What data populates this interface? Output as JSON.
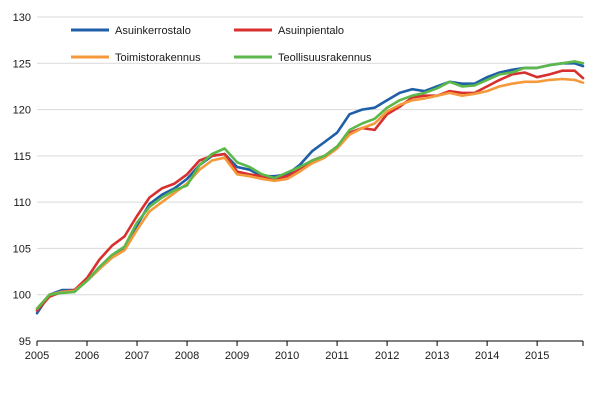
{
  "chart_data": {
    "type": "line",
    "title": "",
    "xlabel": "",
    "ylabel": "",
    "xlim": [
      2005.0,
      2015.917
    ],
    "ylim": [
      95,
      130
    ],
    "y_ticks": [
      95,
      100,
      105,
      110,
      115,
      120,
      125,
      130
    ],
    "x_ticks": [
      "2005",
      "2006",
      "2007",
      "2008",
      "2009",
      "2010",
      "2011",
      "2012",
      "2013",
      "2014",
      "2015"
    ],
    "grid": "horizontal",
    "legend_position": "top-left",
    "series": [
      {
        "name": "Asuinkerrostalo",
        "color": "#1f5fa8",
        "points": [
          [
            2005.0,
            98.0
          ],
          [
            2005.25,
            100.0
          ],
          [
            2005.5,
            100.5
          ],
          [
            2005.75,
            100.5
          ],
          [
            2006.0,
            101.5
          ],
          [
            2006.25,
            102.8
          ],
          [
            2006.5,
            104.0
          ],
          [
            2006.75,
            105.0
          ],
          [
            2007.0,
            107.5
          ],
          [
            2007.25,
            109.8
          ],
          [
            2007.5,
            110.8
          ],
          [
            2007.75,
            111.5
          ],
          [
            2008.0,
            112.5
          ],
          [
            2008.25,
            114.0
          ],
          [
            2008.5,
            115.0
          ],
          [
            2008.75,
            115.2
          ],
          [
            2009.0,
            113.8
          ],
          [
            2009.25,
            113.5
          ],
          [
            2009.5,
            112.8
          ],
          [
            2009.75,
            112.8
          ],
          [
            2010.0,
            113.0
          ],
          [
            2010.25,
            114.0
          ],
          [
            2010.5,
            115.5
          ],
          [
            2010.75,
            116.5
          ],
          [
            2011.0,
            117.5
          ],
          [
            2011.25,
            119.5
          ],
          [
            2011.5,
            120.0
          ],
          [
            2011.75,
            120.2
          ],
          [
            2012.0,
            121.0
          ],
          [
            2012.25,
            121.8
          ],
          [
            2012.5,
            122.2
          ],
          [
            2012.75,
            122.0
          ],
          [
            2013.0,
            122.5
          ],
          [
            2013.25,
            123.0
          ],
          [
            2013.5,
            122.8
          ],
          [
            2013.75,
            122.8
          ],
          [
            2014.0,
            123.5
          ],
          [
            2014.25,
            124.0
          ],
          [
            2014.5,
            124.3
          ],
          [
            2014.75,
            124.5
          ],
          [
            2015.0,
            124.5
          ],
          [
            2015.25,
            124.8
          ],
          [
            2015.5,
            125.0
          ],
          [
            2015.75,
            125.0
          ],
          [
            2015.917,
            124.7
          ]
        ]
      },
      {
        "name": "Asuinpientalo",
        "color": "#d7302f",
        "points": [
          [
            2005.0,
            98.3
          ],
          [
            2005.25,
            99.8
          ],
          [
            2005.5,
            100.3
          ],
          [
            2005.75,
            100.5
          ],
          [
            2006.0,
            101.8
          ],
          [
            2006.25,
            103.8
          ],
          [
            2006.5,
            105.3
          ],
          [
            2006.75,
            106.3
          ],
          [
            2007.0,
            108.5
          ],
          [
            2007.25,
            110.5
          ],
          [
            2007.5,
            111.5
          ],
          [
            2007.75,
            112.0
          ],
          [
            2008.0,
            113.0
          ],
          [
            2008.25,
            114.5
          ],
          [
            2008.5,
            115.0
          ],
          [
            2008.75,
            115.2
          ],
          [
            2009.0,
            113.3
          ],
          [
            2009.25,
            113.0
          ],
          [
            2009.5,
            112.8
          ],
          [
            2009.75,
            112.5
          ],
          [
            2010.0,
            112.8
          ],
          [
            2010.25,
            113.5
          ],
          [
            2010.5,
            114.5
          ],
          [
            2010.75,
            115.0
          ],
          [
            2011.0,
            116.0
          ],
          [
            2011.25,
            117.5
          ],
          [
            2011.5,
            118.0
          ],
          [
            2011.75,
            117.8
          ],
          [
            2012.0,
            119.5
          ],
          [
            2012.25,
            120.3
          ],
          [
            2012.5,
            121.3
          ],
          [
            2012.75,
            121.5
          ],
          [
            2013.0,
            121.5
          ],
          [
            2013.25,
            122.0
          ],
          [
            2013.5,
            121.8
          ],
          [
            2013.75,
            121.8
          ],
          [
            2014.0,
            122.5
          ],
          [
            2014.25,
            123.2
          ],
          [
            2014.5,
            123.8
          ],
          [
            2014.75,
            124.0
          ],
          [
            2015.0,
            123.5
          ],
          [
            2015.25,
            123.8
          ],
          [
            2015.5,
            124.2
          ],
          [
            2015.75,
            124.2
          ],
          [
            2015.917,
            123.4
          ]
        ]
      },
      {
        "name": "Toimistorakennus",
        "color": "#f59a3c",
        "points": [
          [
            2005.0,
            98.5
          ],
          [
            2005.25,
            100.0
          ],
          [
            2005.5,
            100.3
          ],
          [
            2005.75,
            100.4
          ],
          [
            2006.0,
            101.5
          ],
          [
            2006.25,
            102.8
          ],
          [
            2006.5,
            104.0
          ],
          [
            2006.75,
            104.8
          ],
          [
            2007.0,
            107.0
          ],
          [
            2007.25,
            109.0
          ],
          [
            2007.5,
            110.0
          ],
          [
            2007.75,
            111.0
          ],
          [
            2008.0,
            112.0
          ],
          [
            2008.25,
            113.5
          ],
          [
            2008.5,
            114.5
          ],
          [
            2008.75,
            114.8
          ],
          [
            2009.0,
            113.0
          ],
          [
            2009.25,
            112.8
          ],
          [
            2009.5,
            112.5
          ],
          [
            2009.75,
            112.3
          ],
          [
            2010.0,
            112.5
          ],
          [
            2010.25,
            113.3
          ],
          [
            2010.5,
            114.2
          ],
          [
            2010.75,
            114.8
          ],
          [
            2011.0,
            115.8
          ],
          [
            2011.25,
            117.3
          ],
          [
            2011.5,
            118.0
          ],
          [
            2011.75,
            118.5
          ],
          [
            2012.0,
            119.8
          ],
          [
            2012.25,
            120.5
          ],
          [
            2012.5,
            121.0
          ],
          [
            2012.75,
            121.2
          ],
          [
            2013.0,
            121.5
          ],
          [
            2013.25,
            121.8
          ],
          [
            2013.5,
            121.5
          ],
          [
            2013.75,
            121.7
          ],
          [
            2014.0,
            122.0
          ],
          [
            2014.25,
            122.5
          ],
          [
            2014.5,
            122.8
          ],
          [
            2014.75,
            123.0
          ],
          [
            2015.0,
            123.0
          ],
          [
            2015.25,
            123.2
          ],
          [
            2015.5,
            123.3
          ],
          [
            2015.75,
            123.2
          ],
          [
            2015.917,
            122.9
          ]
        ]
      },
      {
        "name": "Teollisuusrakennus",
        "color": "#5cb84a",
        "points": [
          [
            2005.0,
            98.5
          ],
          [
            2005.25,
            100.0
          ],
          [
            2005.5,
            100.2
          ],
          [
            2005.75,
            100.3
          ],
          [
            2006.0,
            101.5
          ],
          [
            2006.25,
            103.0
          ],
          [
            2006.5,
            104.3
          ],
          [
            2006.75,
            105.2
          ],
          [
            2007.0,
            107.8
          ],
          [
            2007.25,
            109.5
          ],
          [
            2007.5,
            110.5
          ],
          [
            2007.75,
            111.3
          ],
          [
            2008.0,
            111.8
          ],
          [
            2008.25,
            114.0
          ],
          [
            2008.5,
            115.2
          ],
          [
            2008.75,
            115.8
          ],
          [
            2009.0,
            114.3
          ],
          [
            2009.25,
            113.8
          ],
          [
            2009.5,
            113.0
          ],
          [
            2009.75,
            112.6
          ],
          [
            2010.0,
            113.2
          ],
          [
            2010.25,
            113.8
          ],
          [
            2010.5,
            114.5
          ],
          [
            2010.75,
            115.0
          ],
          [
            2011.0,
            116.0
          ],
          [
            2011.25,
            117.8
          ],
          [
            2011.5,
            118.5
          ],
          [
            2011.75,
            119.0
          ],
          [
            2012.0,
            120.2
          ],
          [
            2012.25,
            121.0
          ],
          [
            2012.5,
            121.5
          ],
          [
            2012.75,
            121.8
          ],
          [
            2013.0,
            122.3
          ],
          [
            2013.25,
            123.0
          ],
          [
            2013.5,
            122.5
          ],
          [
            2013.75,
            122.6
          ],
          [
            2014.0,
            123.2
          ],
          [
            2014.25,
            123.8
          ],
          [
            2014.5,
            124.0
          ],
          [
            2014.75,
            124.5
          ],
          [
            2015.0,
            124.5
          ],
          [
            2015.25,
            124.8
          ],
          [
            2015.5,
            125.0
          ],
          [
            2015.75,
            125.2
          ],
          [
            2015.917,
            125.0
          ]
        ]
      }
    ]
  }
}
